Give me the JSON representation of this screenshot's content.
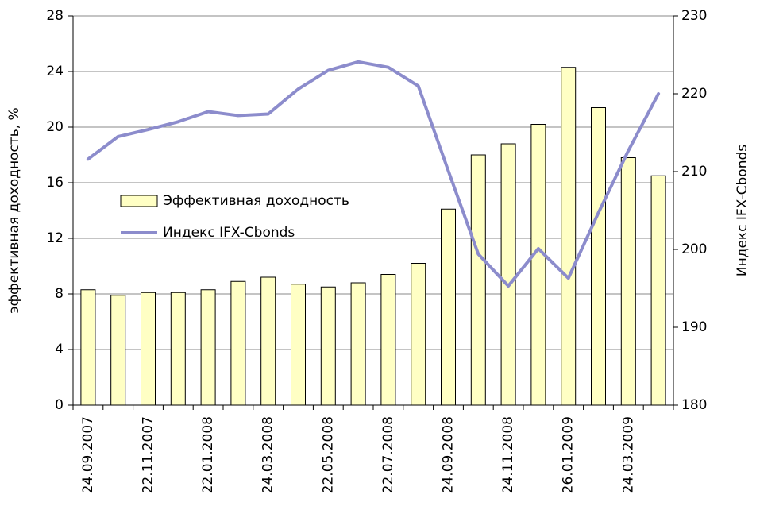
{
  "chart_data": {
    "type": "bar",
    "categories": [
      "24.09.2007",
      null,
      "22.11.2007",
      null,
      "22.01.2008",
      null,
      "24.03.2008",
      null,
      "22.05.2008",
      null,
      "22.07.2008",
      null,
      "24.09.2008",
      null,
      "24.11.2008",
      null,
      "26.01.2009",
      null,
      "24.03.2009",
      null
    ],
    "series": [
      {
        "name": "Эффективная доходность",
        "type": "bar",
        "color": "#ffffc4",
        "values": [
          8.3,
          7.9,
          8.1,
          8.1,
          8.3,
          8.9,
          9.2,
          8.7,
          8.5,
          8.8,
          9.4,
          10.2,
          14.1,
          18.0,
          18.8,
          20.2,
          24.3,
          21.4,
          17.8,
          16.5
        ]
      },
      {
        "name": "Индекс IFX-Cbonds",
        "type": "line",
        "axis": "y2",
        "color": "#8c8ccc",
        "values": [
          211.6,
          214.5,
          215.4,
          216.4,
          217.7,
          217.2,
          217.4,
          220.6,
          223.0,
          224.1,
          223.4,
          221.0,
          210.1,
          199.4,
          195.3,
          200.1,
          196.3,
          204.7,
          212.7,
          220.0
        ]
      }
    ],
    "ylabel": "эффективная доходность, %",
    "y2label": "Индекс IFX-Cbonds",
    "ylim": [
      0,
      28
    ],
    "yticks": [
      0,
      4,
      8,
      12,
      16,
      20,
      24,
      28
    ],
    "y2lim": [
      180,
      230
    ],
    "y2ticks": [
      180,
      190,
      200,
      210,
      220,
      230
    ],
    "grid": true
  }
}
